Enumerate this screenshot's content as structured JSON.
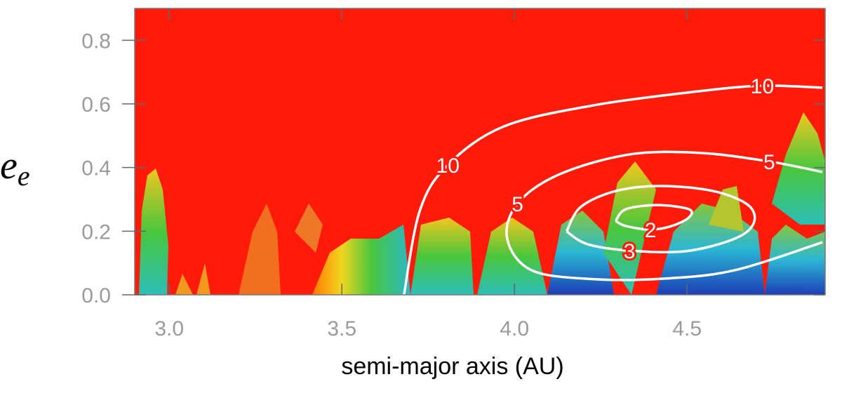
{
  "chart_data": {
    "type": "contour",
    "xlabel": "semi-major axis (AU)",
    "ylabel": {
      "base": "e",
      "subscript": "e"
    },
    "xlim": [
      2.9,
      4.9
    ],
    "ylim": [
      0,
      0.9
    ],
    "xticks": [
      {
        "value": 3,
        "label": "3.0"
      },
      3.5,
      {
        "value": 4,
        "label": "4.0"
      },
      4.5
    ],
    "yticks": [
      {
        "value": 0,
        "label": "0.0"
      },
      0.2,
      0.4,
      0.6,
      0.8
    ],
    "background_color": "#ff1a0a",
    "contours": [
      {
        "level": 10,
        "color": "#ffffff",
        "x": [
          3.68,
          3.726,
          3.807,
          3.969,
          4.232,
          4.536,
          4.718,
          4.892
        ],
        "y": [
          0,
          0.265,
          0.408,
          0.529,
          0.596,
          0.64,
          0.657,
          0.651
        ]
      },
      {
        "level": 5,
        "color": "#ffffff",
        "x": [
          4.892,
          4.738,
          4.536,
          4.333,
          4.131,
          4.009,
          3.979,
          4.05,
          4.232,
          4.434,
          4.637,
          4.892
        ],
        "y": [
          0.386,
          0.419,
          0.446,
          0.441,
          0.379,
          0.287,
          0.176,
          0.077,
          0.049,
          0.051,
          0.077,
          0.165
        ]
      },
      {
        "level": 3,
        "color": "#ffffff",
        "x": [
          4.151,
          4.192,
          4.293,
          4.424,
          4.576,
          4.677,
          4.693,
          4.637,
          4.495,
          4.333,
          4.212,
          4.151
        ],
        "y": [
          0.199,
          0.276,
          0.326,
          0.342,
          0.326,
          0.282,
          0.225,
          0.176,
          0.137,
          0.139,
          0.159,
          0.199
        ]
      },
      {
        "level": 2,
        "color": "#ffffff",
        "x": [
          4.293,
          4.323,
          4.414,
          4.505,
          4.505,
          4.455,
          4.394,
          4.323,
          4.293
        ],
        "y": [
          0.232,
          0.269,
          0.282,
          0.269,
          0.243,
          0.216,
          0.205,
          0.216,
          0.232
        ]
      }
    ]
  }
}
